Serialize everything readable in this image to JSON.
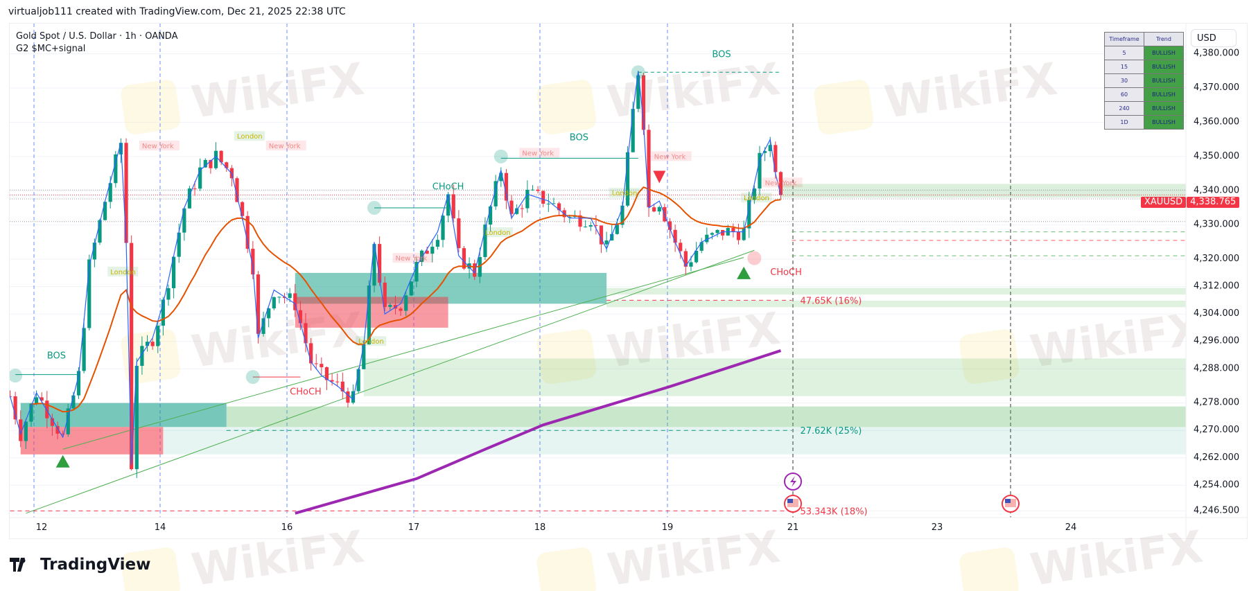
{
  "header": {
    "credit": "virtualjob111 created with TradingView.com, Dec 21, 2025 22:38 UTC",
    "symbol_line": "Gold Spot / U.S. Dollar · 1h · OANDA",
    "indicator_line": "G2 $MC+signal",
    "currency": "USD",
    "brand": "TradingView",
    "watermark": "WikiFX"
  },
  "trend_table": {
    "headers": [
      "Timeframe",
      "Trend"
    ],
    "rows": [
      [
        "5",
        "BULLISH"
      ],
      [
        "15",
        "BULLISH"
      ],
      [
        "30",
        "BULLISH"
      ],
      [
        "60",
        "BULLISH"
      ],
      [
        "240",
        "BULLISH"
      ],
      [
        "1D",
        "BULLISH"
      ]
    ]
  },
  "price_tag": {
    "symbol": "XAUUSD",
    "price": "4,338.765"
  },
  "colors": {
    "up": "#089981",
    "down": "#f23645",
    "ema": "#e65100",
    "long_ma": "#9c27b0",
    "zigzag": "#2962ff",
    "trendline": "#4caf50",
    "structure": "#089981"
  },
  "chart_data": {
    "type": "candlestick",
    "timeframe": "1h",
    "ylim": [
      4246.5,
      4380
    ],
    "y_ticks": [
      "4,380.000",
      "4,370.000",
      "4,360.000",
      "4,350.000",
      "4,340.000",
      "4,330.000",
      "4,320.000",
      "4,312.000",
      "4,304.000",
      "4,296.000",
      "4,288.000",
      "4,278.000",
      "4,270.000",
      "4,262.000",
      "4,254.000",
      "4,246.500"
    ],
    "x_ticks": [
      "12",
      "14",
      "16",
      "17",
      "18",
      "19",
      "21",
      "23",
      "24"
    ],
    "last_price": 4338.765,
    "price_path": [
      [
        "2025-12-11T18:00",
        4280
      ],
      [
        "2025-12-11T20:00",
        4269
      ],
      [
        "2025-12-11T23:00",
        4281
      ],
      [
        "2025-12-12T04:00",
        4268
      ],
      [
        "2025-12-12T07:00",
        4286
      ],
      [
        "2025-12-12T09:00",
        4318
      ],
      [
        "2025-12-12T12:00",
        4337
      ],
      [
        "2025-12-12T15:00",
        4354
      ],
      [
        "2025-12-12T16:00",
        4325
      ],
      [
        "2025-12-12T17:00",
        4260
      ],
      [
        "2025-12-12T18:00",
        4290
      ],
      [
        "2025-12-12T21:00",
        4297
      ],
      [
        "2025-12-15T00:00",
        4307
      ],
      [
        "2025-12-15T04:00",
        4335
      ],
      [
        "2025-12-15T07:00",
        4346
      ],
      [
        "2025-12-15T10:00",
        4350
      ],
      [
        "2025-12-15T13:00",
        4345
      ],
      [
        "2025-12-15T15:00",
        4332
      ],
      [
        "2025-12-15T17:00",
        4318
      ],
      [
        "2025-12-15T18:00",
        4297
      ],
      [
        "2025-12-15T21:00",
        4311
      ],
      [
        "2025-12-16T01:00",
        4307
      ],
      [
        "2025-12-16T04:00",
        4290
      ],
      [
        "2025-12-16T06:00",
        4286
      ],
      [
        "2025-12-16T09:00",
        4283
      ],
      [
        "2025-12-16T12:00",
        4279
      ],
      [
        "2025-12-16T14:00",
        4295
      ],
      [
        "2025-12-16T16:00",
        4325
      ],
      [
        "2025-12-16T18:00",
        4304
      ],
      [
        "2025-12-16T21:00",
        4307
      ],
      [
        "2025-12-17T00:00",
        4318
      ],
      [
        "2025-12-17T04:00",
        4328
      ],
      [
        "2025-12-17T06:00",
        4339
      ],
      [
        "2025-12-17T08:00",
        4321
      ],
      [
        "2025-12-17T11:00",
        4316
      ],
      [
        "2025-12-17T14:00",
        4335
      ],
      [
        "2025-12-17T16:00",
        4346
      ],
      [
        "2025-12-17T18:00",
        4332
      ],
      [
        "2025-12-17T21:00",
        4339
      ],
      [
        "2025-12-18T01:00",
        4337
      ],
      [
        "2025-12-18T05:00",
        4332
      ],
      [
        "2025-12-18T09:00",
        4332
      ],
      [
        "2025-12-18T12:00",
        4323
      ],
      [
        "2025-12-18T15:00",
        4335
      ],
      [
        "2025-12-18T17:00",
        4363
      ],
      [
        "2025-12-18T18:00",
        4375
      ],
      [
        "2025-12-18T19:00",
        4360
      ],
      [
        "2025-12-18T20:00",
        4335
      ],
      [
        "2025-12-18T22:00",
        4337
      ],
      [
        "2025-12-19T01:00",
        4325
      ],
      [
        "2025-12-19T03:00",
        4318
      ],
      [
        "2025-12-19T06:00",
        4325
      ],
      [
        "2025-12-19T10:00",
        4328
      ],
      [
        "2025-12-19T14:00",
        4328
      ],
      [
        "2025-12-19T17:00",
        4349
      ],
      [
        "2025-12-19T19:00",
        4355
      ],
      [
        "2025-12-19T20:00",
        4345
      ],
      [
        "2025-12-19T21:00",
        4338.765
      ]
    ],
    "long_ma": [
      [
        "2025-12-16T01:00",
        4245.8
      ],
      [
        "2025-12-17T00:00",
        4255.9
      ],
      [
        "2025-12-17T13:00",
        4264.5
      ],
      [
        "2025-12-18T00:00",
        4271.6
      ],
      [
        "2025-12-19T00:00",
        4282.8
      ],
      [
        "2025-12-19T21:00",
        4293.3
      ]
    ],
    "zones": [
      {
        "kind": "bullish-order-block",
        "from": "2025-12-16T01:00",
        "to": "2025-12-18T12:00",
        "top": 4316,
        "bottom": 4307,
        "color": "rgba(8,153,129,0.5)"
      },
      {
        "kind": "bearish-order-block",
        "from": "2025-12-16T01:00",
        "to": "2025-12-17T06:00",
        "top": 4309,
        "bottom": 4300,
        "color": "rgba(242,54,69,0.5)"
      },
      {
        "kind": "bullish-order-block",
        "from": "2025-12-11T20:00",
        "to": "2025-12-15T12:00",
        "top": 4278,
        "bottom": 4271,
        "color": "rgba(8,153,129,0.55)"
      },
      {
        "kind": "bearish-order-block",
        "from": "2025-12-11T20:00",
        "to": "2025-12-15T00:00",
        "top": 4271,
        "bottom": 4263,
        "color": "rgba(242,54,69,0.55)"
      },
      {
        "kind": "demand-band",
        "from": "2025-12-18T12:00",
        "to": "extend",
        "top": 4311.6,
        "bottom": 4309.7,
        "color": "rgba(76,175,80,0.18)"
      },
      {
        "kind": "demand-band",
        "from": "2025-12-18T12:00",
        "to": "extend",
        "top": 4307.9,
        "bottom": 4306,
        "color": "rgba(76,175,80,0.18)"
      },
      {
        "kind": "demand-band",
        "from": "2025-12-16T14:00",
        "to": "extend",
        "top": 4291,
        "bottom": 4280,
        "color": "rgba(76,175,80,0.18)"
      },
      {
        "kind": "demand-band",
        "from": "2025-12-15T12:00",
        "to": "extend",
        "top": 4277,
        "bottom": 4271,
        "color": "rgba(76,175,80,0.3)"
      },
      {
        "kind": "demand-band",
        "from": "2025-12-15T00:00",
        "to": "extend",
        "top": 4271,
        "bottom": 4263,
        "color": "rgba(8,153,129,0.1)"
      },
      {
        "kind": "supply-band",
        "from": "2025-12-19T21:00",
        "to": "extend",
        "top": 4342,
        "bottom": 4338,
        "color": "rgba(76,175,80,0.2)"
      }
    ],
    "levels": [
      {
        "price": 4308,
        "from": "2025-12-18T12:00",
        "color": "#f23645",
        "label": "47.65K (16%)"
      },
      {
        "price": 4270,
        "from": "2025-12-15T12:00",
        "color": "#089981",
        "label": "27.62K (25%)"
      },
      {
        "price": 4246.5,
        "from": "2025-12-11T18:00",
        "color": "#f23645",
        "label": "53.343K (18%)"
      }
    ],
    "structure_lines": [
      {
        "from": "2025-12-11T19:00",
        "to": "2025-12-12T07:00",
        "price": 4286.3,
        "color": "#089981",
        "dash": false
      },
      {
        "from": "2025-12-15T17:00",
        "to": "2025-12-16T02:00",
        "price": 4285.6,
        "color": "#f23645",
        "dash": false
      },
      {
        "from": "2025-12-16T16:00",
        "to": "2025-12-17T06:00",
        "price": 4335,
        "color": "#089981",
        "dash": false
      },
      {
        "from": "2025-12-17T16:00",
        "to": "2025-12-18T18:00",
        "price": 4349.5,
        "color": "#089981",
        "dash": false
      },
      {
        "from": "2025-12-18T18:00",
        "to": "2025-12-19T21:00",
        "price": 4374.6,
        "color": "#089981",
        "dash": true
      }
    ],
    "structure_labels": [
      {
        "text": "BOS",
        "time": "2025-12-12T01:00",
        "price": 4291,
        "color": "#089981"
      },
      {
        "text": "CHoCH",
        "time": "2025-12-16T00:00",
        "price": 4280.5,
        "color": "#f23645"
      },
      {
        "text": "CHoCH",
        "time": "2025-12-17T03:00",
        "price": 4340.4,
        "color": "#089981"
      },
      {
        "text": "BOS",
        "time": "2025-12-18T05:00",
        "price": 4354.7,
        "color": "#089981"
      },
      {
        "text": "BOS",
        "time": "2025-12-19T08:00",
        "price": 4379,
        "color": "#089981"
      },
      {
        "text": "CHoCH",
        "time": "2025-12-19T19:00",
        "price": 4315.4,
        "color": "#f23645"
      }
    ],
    "session_labels": [
      {
        "text": "New York",
        "time": "2025-12-12T19:00",
        "price": 4352.6
      },
      {
        "text": "London",
        "time": "2025-12-15T14:00",
        "price": 4355.4
      },
      {
        "text": "New York",
        "time": "2025-12-15T20:00",
        "price": 4352.6
      },
      {
        "text": "London",
        "time": "2025-12-12T13:00",
        "price": 4315.8
      },
      {
        "text": "New York",
        "time": "2025-12-16T20:00",
        "price": 4319.8
      },
      {
        "text": "London",
        "time": "2025-12-16T13:00",
        "price": 4295.5
      },
      {
        "text": "London",
        "time": "2025-12-17T13:00",
        "price": 4327.3
      },
      {
        "text": "New York",
        "time": "2025-12-17T20:00",
        "price": 4350.5
      },
      {
        "text": "London",
        "time": "2025-12-18T13:00",
        "price": 4338.8
      },
      {
        "text": "New York",
        "time": "2025-12-18T21:00",
        "price": 4349.5
      },
      {
        "text": "London",
        "time": "2025-12-19T14:00",
        "price": 4337.4
      },
      {
        "text": "New York",
        "time": "2025-12-19T18:00",
        "price": 4341.8
      }
    ],
    "swing_points": [
      [
        "2025-12-11T19:00",
        4286
      ],
      [
        "2025-12-15T17:00",
        4285.6
      ],
      [
        "2025-12-16T16:00",
        4335
      ],
      [
        "2025-12-17T16:00",
        4350
      ],
      [
        "2025-12-18T18:00",
        4374.6
      ],
      [
        "2025-12-19T16:00",
        4320.3
      ]
    ],
    "signals": [
      {
        "type": "buy",
        "time": "2025-12-12T04:00",
        "price": 4261
      },
      {
        "type": "buy",
        "time": "2025-12-19T14:00",
        "price": 4316
      },
      {
        "type": "sell",
        "time": "2025-12-18T22:00",
        "price": 4344
      }
    ],
    "trendlines": [
      [
        [
          "2025-12-11T21:00",
          4245.8
        ],
        [
          "2025-12-19T16:00",
          4322.6
        ]
      ],
      [
        [
          "2025-12-12T04:00",
          4264.5
        ],
        [
          "2025-12-19T14:00",
          4320.5
        ]
      ]
    ]
  }
}
